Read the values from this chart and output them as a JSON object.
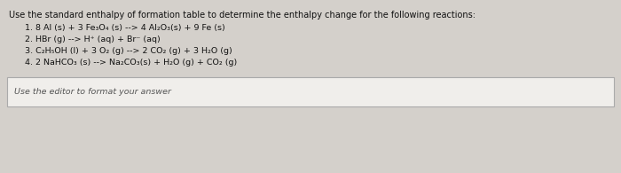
{
  "background_color": "#d4d0cb",
  "box_bg_color": "#f0eeeb",
  "title": "Use the standard enthalpy of formation table to determine the enthalpy change for the following reactions:",
  "reactions": [
    "1. 8 Al (s) + 3 Fe₃O₄ (s) --> 4 Al₂O₃(s) + 9 Fe (s)",
    "2. HBr (g) --> H⁺ (aq) + Br⁻ (aq)",
    "3. C₂H₅OH (l) + 3 O₂ (g) --> 2 CO₂ (g) + 3 H₂O (g)",
    "4. 2 NaHCO₃ (s) --> Na₂CO₃(s) + H₂O (g) + CO₂ (g)"
  ],
  "editor_prompt": "Use the editor to format your answer",
  "title_fontsize": 7.0,
  "reaction_fontsize": 6.8,
  "editor_fontsize": 6.8,
  "text_color": "#111111",
  "editor_text_color": "#555555",
  "border_color": "#aaaaaa"
}
